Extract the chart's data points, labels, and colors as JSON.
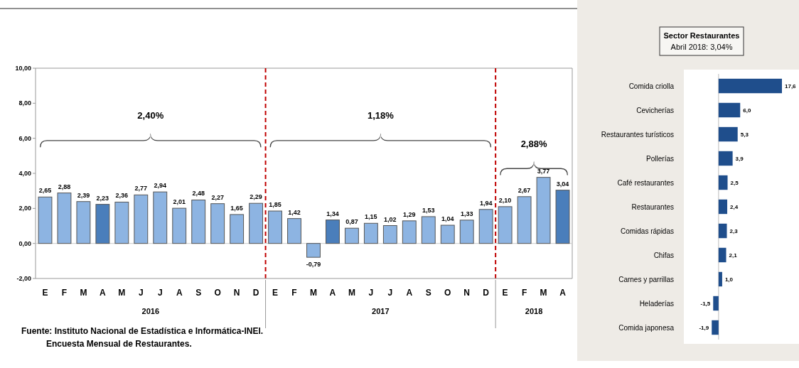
{
  "chart_data": [
    {
      "type": "bar",
      "categories": [
        "E",
        "F",
        "M",
        "A",
        "M",
        "J",
        "J",
        "A",
        "S",
        "O",
        "N",
        "D",
        "E",
        "F",
        "M",
        "A",
        "M",
        "J",
        "J",
        "A",
        "S",
        "O",
        "N",
        "D",
        "E",
        "F",
        "M",
        "A"
      ],
      "values": [
        2.65,
        2.88,
        2.39,
        2.23,
        2.36,
        2.77,
        2.94,
        2.01,
        2.48,
        2.27,
        1.65,
        2.29,
        1.85,
        1.42,
        -0.79,
        1.34,
        0.87,
        1.15,
        1.02,
        1.29,
        1.53,
        1.04,
        1.33,
        1.94,
        2.1,
        2.67,
        3.77,
        3.04
      ],
      "value_labels": [
        "2,65",
        "2,88",
        "2,39",
        "2,23",
        "2,36",
        "2,77",
        "2,94",
        "2,01",
        "2,48",
        "2,27",
        "1,65",
        "2,29",
        "1,85",
        "1,42",
        "-0,79",
        "1,34",
        "0,87",
        "1,15",
        "1,02",
        "1,29",
        "1,53",
        "1,04",
        "1,33",
        "1,94",
        "2,10",
        "2,67",
        "3,77",
        "3,04"
      ],
      "colors": [
        "#8db4e2",
        "#8db4e2",
        "#8db4e2",
        "#4a7ebb",
        "#8db4e2",
        "#8db4e2",
        "#8db4e2",
        "#8db4e2",
        "#8db4e2",
        "#8db4e2",
        "#8db4e2",
        "#8db4e2",
        "#8db4e2",
        "#8db4e2",
        "#8db4e2",
        "#4a7ebb",
        "#8db4e2",
        "#8db4e2",
        "#8db4e2",
        "#8db4e2",
        "#8db4e2",
        "#8db4e2",
        "#8db4e2",
        "#8db4e2",
        "#8db4e2",
        "#8db4e2",
        "#8db4e2",
        "#4a7ebb"
      ],
      "ylim": [
        -2,
        10
      ],
      "yticks": [
        {
          "value": -2,
          "label": "-2,00"
        },
        {
          "value": 0,
          "label": "0,00"
        },
        {
          "value": 2,
          "label": "2,00"
        },
        {
          "value": 4,
          "label": "4,00"
        },
        {
          "value": 6,
          "label": "6,00"
        },
        {
          "value": 8,
          "label": "8,00"
        },
        {
          "value": 10,
          "label": "10,00"
        }
      ],
      "annotations": [
        "2,40%",
        "1,18%",
        "2,88%",
        "2016",
        "2017",
        "2018",
        "Fuente: Instituto Nacional de Estadística e Informática-INEI.",
        "Encuesta Mensual de Restaurantes."
      ]
    },
    {
      "type": "bar",
      "orientation": "horizontal",
      "title": "Sector Restaurantes",
      "subtitle": "Abril 2018: 3,04%",
      "categories": [
        "Comida criolla",
        "Cevicherías",
        "Restaurantes turísticos",
        "Pollerías",
        "Café restaurantes",
        "Restaurantes",
        "Comidas rápidas",
        "Chifas",
        "Carnes y parrillas",
        "Heladerías",
        "Comida japonesa"
      ],
      "values": [
        17.6,
        6.0,
        5.3,
        3.9,
        2.5,
        2.4,
        2.3,
        2.1,
        1.0,
        -1.5,
        -1.9
      ],
      "value_labels": [
        "17,6",
        "6,0",
        "5,3",
        "3,9",
        "2,5",
        "2,4",
        "2,3",
        "2,1",
        "1,0",
        "-1,5",
        "-1,9"
      ],
      "color": "#1f4e8c"
    }
  ]
}
